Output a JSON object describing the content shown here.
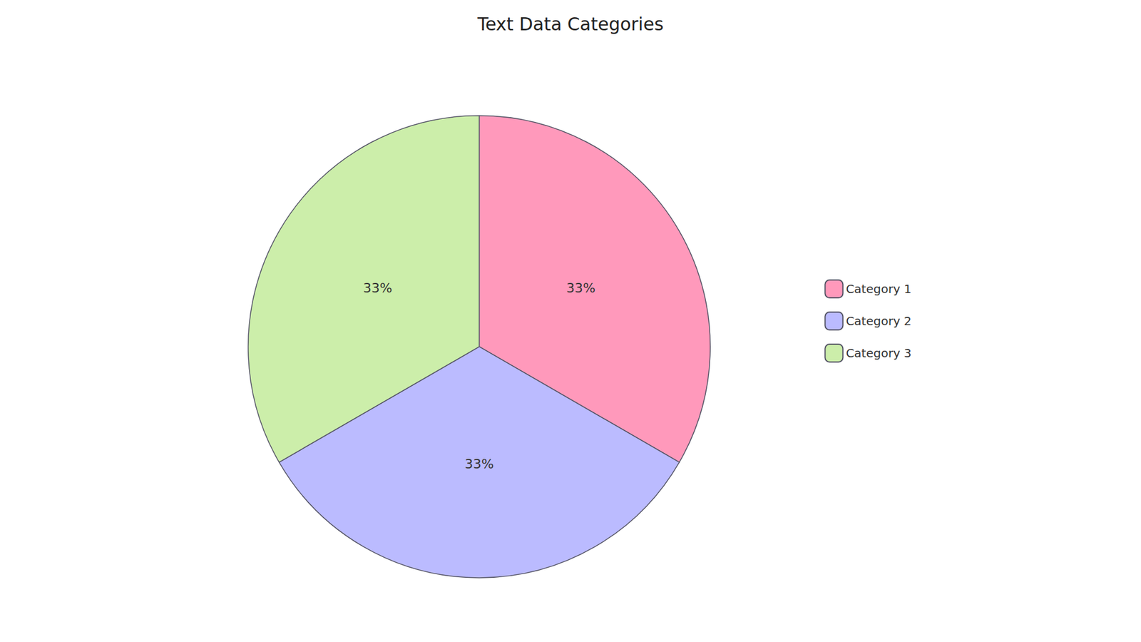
{
  "chart_data": {
    "type": "pie",
    "title": "Text Data Categories",
    "categories": [
      "Category 1",
      "Category 2",
      "Category 3"
    ],
    "values": [
      33,
      33,
      33
    ],
    "value_labels": [
      "33%",
      "33%",
      "33%"
    ],
    "colors": [
      "#FF99BB",
      "#BBBBFF",
      "#CCEEAA"
    ],
    "data_labels": true,
    "legend": "right"
  }
}
